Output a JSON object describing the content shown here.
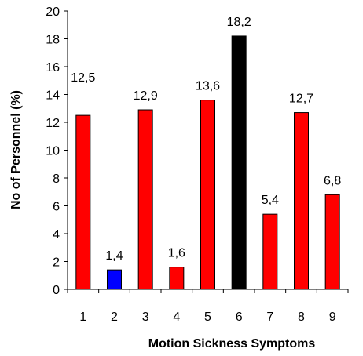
{
  "chart_data": {
    "type": "bar",
    "title": "",
    "xlabel": "Motion Sickness Symptoms",
    "ylabel": "No of Personnel (%)",
    "ylim": [
      0,
      20
    ],
    "yticks": [
      0,
      2,
      4,
      6,
      8,
      10,
      12,
      14,
      16,
      18,
      20
    ],
    "categories": [
      "1",
      "2",
      "3",
      "4",
      "5",
      "6",
      "7",
      "8",
      "9"
    ],
    "values": [
      12.5,
      1.4,
      12.9,
      1.6,
      13.6,
      18.2,
      5.4,
      12.7,
      6.8
    ],
    "data_labels": [
      "12,5",
      "1,4",
      "12,9",
      "1,6",
      "13,6",
      "18,2",
      "5,4",
      "12,7",
      "6,8"
    ],
    "bar_colors": [
      "#ff0000",
      "#0000ff",
      "#ff0000",
      "#ff0000",
      "#ff0000",
      "#000000",
      "#ff0000",
      "#ff0000",
      "#ff0000"
    ],
    "grid": false,
    "legend": "none"
  }
}
